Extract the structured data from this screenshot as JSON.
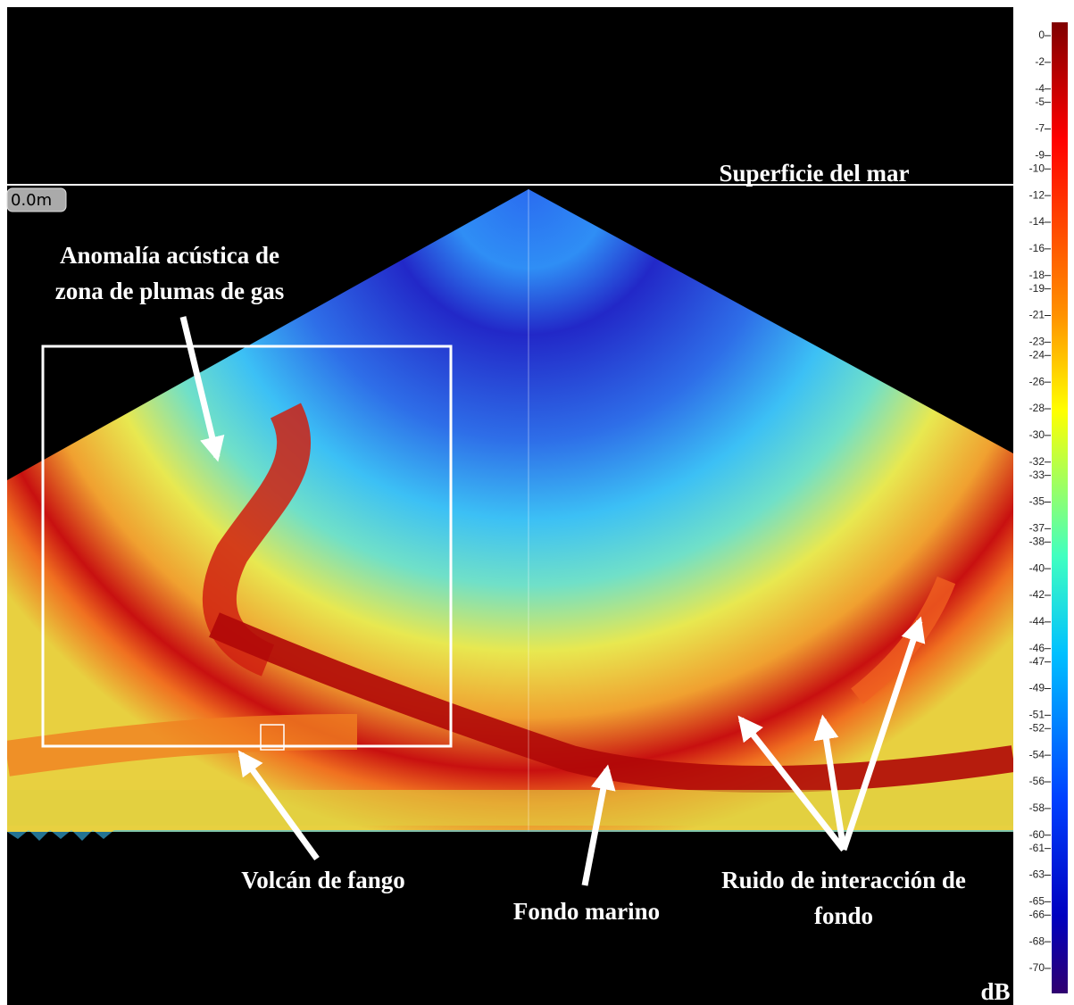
{
  "surface_label": "Superficie del mar",
  "depth_label": "0.0m",
  "annotations": [
    {
      "lines": [
        "Anomalía acústica de",
        "zona de plumas de gas"
      ]
    },
    {
      "lines": [
        "Volcán de fango"
      ]
    },
    {
      "lines": [
        "Fondo marino"
      ]
    },
    {
      "lines": [
        "Ruido de interacción de",
        "fondo"
      ]
    }
  ],
  "colorbar": {
    "unit": "dB",
    "ticks": [
      0,
      -2,
      -4,
      -5,
      -7,
      -9,
      -10,
      -12,
      -14,
      -16,
      -18,
      -19,
      -21,
      -23,
      -24,
      -26,
      -28,
      -30,
      -32,
      -33,
      -35,
      -37,
      -38,
      -40,
      -42,
      -44,
      -46,
      -47,
      -49,
      -51,
      -52,
      -54,
      -56,
      -58,
      -60,
      -61,
      -63,
      -65,
      -66,
      -68,
      -70
    ]
  }
}
